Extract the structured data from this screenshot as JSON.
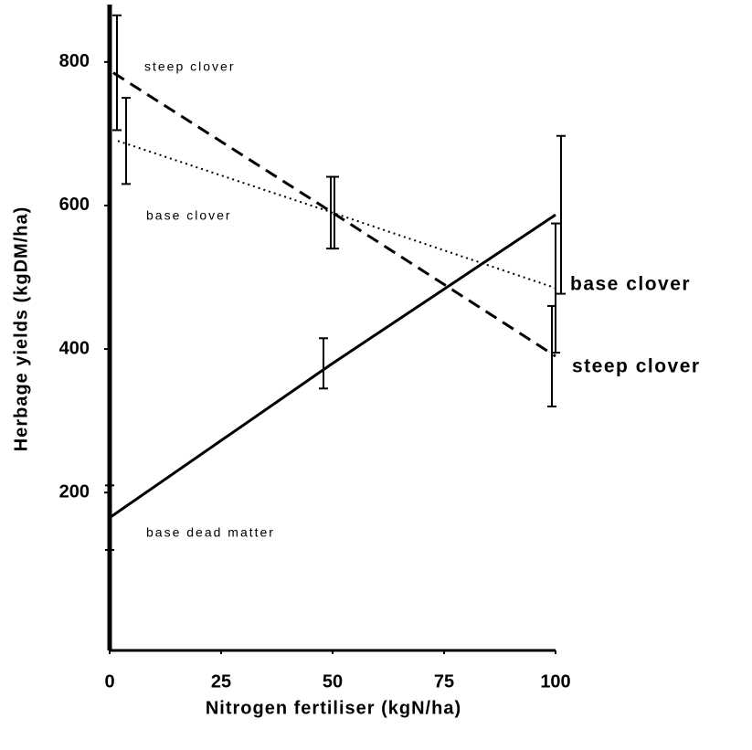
{
  "chart_data": {
    "type": "line",
    "x_label": "Nitrogen fertiliser (kgN/ha)",
    "y_label": "Herbage yields (kgDM/ha)",
    "xlim": [
      0,
      100
    ],
    "xticks": [
      0,
      25,
      50,
      75,
      100
    ],
    "ylim": [
      -20,
      880
    ],
    "yticks": [
      200,
      400,
      600,
      800
    ],
    "x": [
      0,
      50,
      100
    ],
    "series": [
      {
        "name": "steep clover",
        "color": "#000",
        "dash": "dashed",
        "values": [
          785,
          590,
          390
        ],
        "errors": [
          80,
          50,
          70
        ]
      },
      {
        "name": "base clover",
        "color": "#000",
        "dash": "dotted",
        "values": [
          690,
          590,
          485
        ],
        "errors": [
          60,
          50,
          90
        ]
      },
      {
        "name": "base dead matter",
        "color": "#000",
        "dash": "solid",
        "values": [
          165,
          380,
          587
        ],
        "errors": [
          45,
          35,
          110
        ]
      }
    ],
    "annotations": [
      "steep clover",
      "base clover",
      "base dead matter",
      "base clover",
      "steep clover"
    ]
  }
}
